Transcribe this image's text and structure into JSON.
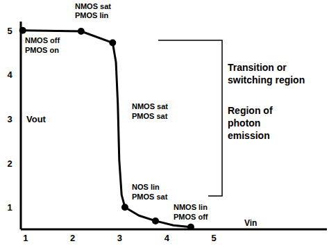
{
  "chart_data": {
    "type": "line",
    "x_label": "Vin",
    "y_label": "Vout",
    "xlim": [
      0.9,
      7.4
    ],
    "ylim": [
      0.5,
      5.2
    ],
    "xticks": [
      1,
      2,
      3,
      4,
      5
    ],
    "yticks": [
      1,
      2,
      3,
      4,
      5
    ],
    "grid": false,
    "series": [
      {
        "type": "line",
        "color": "#000000",
        "marker": "none",
        "line_style": "solid",
        "x": [
          0.94,
          2.18,
          2.85,
          2.92,
          2.96,
          2.99,
          3.04,
          3.11,
          3.41,
          3.76,
          4.14,
          4.51
        ],
        "values": [
          5.0,
          4.98,
          4.72,
          4.28,
          3.33,
          2.07,
          1.28,
          1.0,
          0.81,
          0.69,
          0.59,
          0.55
        ]
      },
      {
        "type": "scatter",
        "color": "#000000",
        "marker": "circle",
        "x": [
          0.94,
          2.18,
          2.85,
          3.11,
          3.76,
          4.51
        ],
        "values": [
          5.0,
          4.98,
          4.72,
          1.0,
          0.69,
          0.55
        ]
      }
    ],
    "annotations": [
      {
        "lines": [
          "NMOS sat",
          "PMOS lin"
        ]
      },
      {
        "lines": [
          "NMOS off",
          "PMOS on"
        ]
      },
      {
        "lines": [
          "NMOS sat",
          "PMOS sat"
        ]
      },
      {
        "lines": [
          "NOS lin",
          "PMOS sat"
        ]
      },
      {
        "lines": [
          "NMOS lin",
          "PMOS off"
        ]
      },
      {
        "lines": [
          "Transition or",
          "switching region"
        ]
      },
      {
        "lines": [
          "Region of",
          "photon",
          "emission"
        ]
      }
    ]
  }
}
